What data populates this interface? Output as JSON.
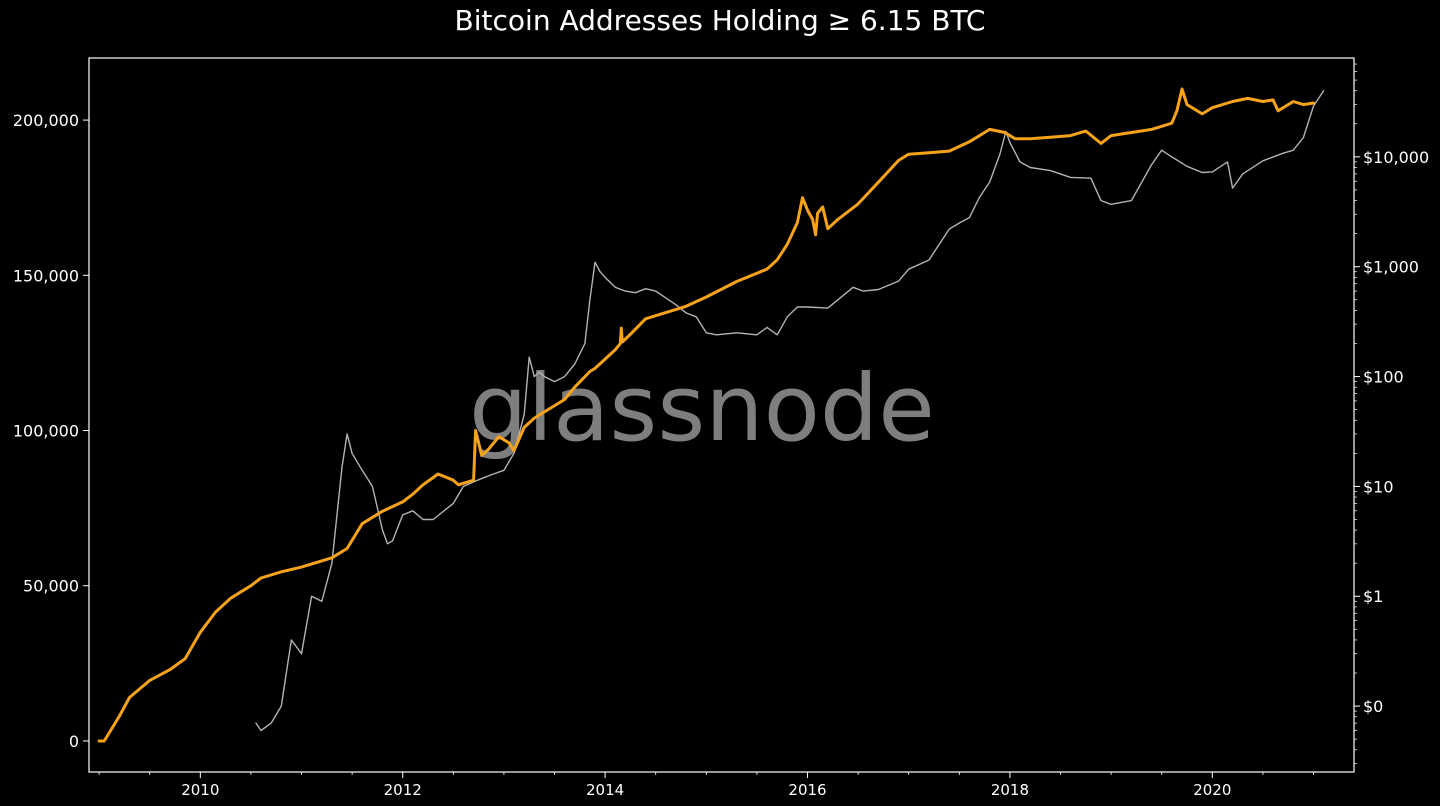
{
  "chart_data": {
    "type": "line",
    "title": "Bitcoin Addresses Holding ≥ 6.15 BTC",
    "watermark": "glassnode",
    "x_ticks": [
      2010,
      2012,
      2014,
      2016,
      2018,
      2020
    ],
    "x_range": [
      2008.9,
      2021.4
    ],
    "y_left": {
      "range": [
        -10000,
        220000
      ],
      "ticks": [
        0,
        50000,
        100000,
        150000,
        200000
      ],
      "tick_labels": [
        "0",
        "50,000",
        "100,000",
        "150,000",
        "200,000"
      ]
    },
    "y_right": {
      "scale": "log",
      "range_log10": [
        -1.6,
        4.9
      ],
      "ticks_log10": [
        -1,
        0,
        1,
        2,
        3,
        4
      ],
      "tick_labels": [
        "$0",
        "$1",
        "$10",
        "$100",
        "$1,000",
        "$10,000"
      ]
    },
    "grid": false,
    "colors": {
      "background": "#000000",
      "axes": "#ffffff",
      "series_addresses": "#f7a21b",
      "series_price": "#b3b3b3"
    },
    "series": [
      {
        "axis": "left",
        "color": "#f7a21b",
        "x": [
          2009.0,
          2009.05,
          2009.2,
          2009.3,
          2009.5,
          2009.7,
          2009.85,
          2010.0,
          2010.15,
          2010.3,
          2010.5,
          2010.6,
          2010.8,
          2011.0,
          2011.3,
          2011.45,
          2011.6,
          2011.8,
          2012.0,
          2012.1,
          2012.2,
          2012.35,
          2012.5,
          2012.55,
          2012.7,
          2012.72,
          2012.78,
          2012.85,
          2012.95,
          2013.05,
          2013.1,
          2013.2,
          2013.3,
          2013.4,
          2013.6,
          2013.7,
          2013.85,
          2013.9,
          2014.0,
          2014.1,
          2014.15,
          2014.16,
          2014.17,
          2014.25,
          2014.4,
          2014.6,
          2014.8,
          2015.0,
          2015.3,
          2015.6,
          2015.7,
          2015.8,
          2015.9,
          2015.95,
          2016.0,
          2016.05,
          2016.08,
          2016.1,
          2016.15,
          2016.2,
          2016.3,
          2016.5,
          2016.7,
          2016.9,
          2017.0,
          2017.2,
          2017.4,
          2017.6,
          2017.8,
          2017.95,
          2018.05,
          2018.2,
          2018.4,
          2018.6,
          2018.75,
          2018.9,
          2019.0,
          2019.2,
          2019.4,
          2019.6,
          2019.65,
          2019.7,
          2019.75,
          2019.8,
          2019.9,
          2020.0,
          2020.2,
          2020.35,
          2020.5,
          2020.6,
          2020.65,
          2020.8,
          2020.9,
          2021.0
        ],
        "y": [
          0,
          0,
          8000,
          14000,
          19500,
          23000,
          26500,
          35000,
          41500,
          46000,
          50000,
          52500,
          54500,
          56000,
          59000,
          62000,
          70000,
          74000,
          77000,
          79500,
          82500,
          86000,
          84000,
          82500,
          84000,
          100000,
          92000,
          94000,
          98000,
          96000,
          93500,
          101000,
          104000,
          106000,
          110000,
          114000,
          119000,
          120000,
          123000,
          126000,
          128000,
          133000,
          128500,
          131000,
          136000,
          138000,
          140000,
          143000,
          148000,
          152000,
          155000,
          160000,
          167000,
          175000,
          171000,
          168000,
          163000,
          170000,
          172000,
          165000,
          168000,
          173000,
          180000,
          187000,
          189000,
          189500,
          190000,
          193000,
          197000,
          196000,
          194000,
          194000,
          194500,
          195000,
          196500,
          192500,
          195000,
          196000,
          197000,
          199000,
          203000,
          210000,
          205000,
          204000,
          202000,
          204000,
          206000,
          207000,
          206000,
          206500,
          203000,
          206000,
          205000,
          205500
        ]
      },
      {
        "axis": "right",
        "color": "#b3b3b3",
        "x": [
          2010.55,
          2010.6,
          2010.7,
          2010.8,
          2010.85,
          2010.9,
          2011.0,
          2011.1,
          2011.2,
          2011.3,
          2011.4,
          2011.45,
          2011.5,
          2011.6,
          2011.7,
          2011.8,
          2011.85,
          2011.9,
          2012.0,
          2012.1,
          2012.2,
          2012.3,
          2012.5,
          2012.6,
          2012.7,
          2012.8,
          2012.9,
          2013.0,
          2013.1,
          2013.2,
          2013.25,
          2013.3,
          2013.35,
          2013.4,
          2013.5,
          2013.6,
          2013.7,
          2013.8,
          2013.85,
          2013.9,
          2013.95,
          2014.0,
          2014.1,
          2014.2,
          2014.3,
          2014.4,
          2014.5,
          2014.7,
          2014.8,
          2014.9,
          2015.0,
          2015.1,
          2015.3,
          2015.5,
          2015.6,
          2015.7,
          2015.8,
          2015.9,
          2016.0,
          2016.2,
          2016.45,
          2016.55,
          2016.7,
          2016.9,
          2017.0,
          2017.2,
          2017.4,
          2017.5,
          2017.6,
          2017.7,
          2017.8,
          2017.9,
          2017.96,
          2018.0,
          2018.1,
          2018.2,
          2018.4,
          2018.6,
          2018.8,
          2018.9,
          2019.0,
          2019.2,
          2019.4,
          2019.5,
          2019.6,
          2019.75,
          2019.9,
          2020.0,
          2020.15,
          2020.2,
          2020.3,
          2020.5,
          2020.7,
          2020.8,
          2020.9,
          2021.0,
          2021.1
        ],
        "y": [
          0.07,
          0.06,
          0.07,
          0.1,
          0.2,
          0.4,
          0.3,
          1.0,
          0.9,
          2.0,
          15,
          30,
          20,
          14,
          10,
          4,
          3,
          3.2,
          5.5,
          6,
          5,
          5,
          7,
          10,
          11,
          12,
          13,
          14,
          20,
          45,
          150,
          100,
          110,
          100,
          90,
          100,
          130,
          200,
          500,
          1100,
          900,
          800,
          650,
          600,
          580,
          630,
          600,
          450,
          380,
          350,
          250,
          240,
          250,
          240,
          280,
          240,
          350,
          430,
          430,
          420,
          650,
          600,
          620,
          740,
          950,
          1150,
          2200,
          2500,
          2800,
          4300,
          5900,
          10500,
          17000,
          13500,
          9000,
          8000,
          7500,
          6500,
          6400,
          4000,
          3700,
          4000,
          8500,
          11500,
          10000,
          8200,
          7200,
          7300,
          9000,
          5200,
          7000,
          9200,
          10800,
          11500,
          15000,
          29000,
          40000
        ]
      }
    ]
  }
}
